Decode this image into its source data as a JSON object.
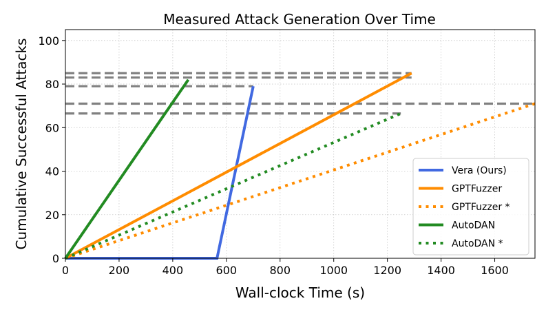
{
  "chart_data": {
    "type": "line",
    "title": "Measured Attack Generation Over Time",
    "xlabel": "Wall-clock Time (s)",
    "ylabel": "Cumulative Successful Attacks",
    "xlim": [
      0,
      1750
    ],
    "ylim": [
      0,
      105
    ],
    "xticks": [
      0,
      200,
      400,
      600,
      800,
      1000,
      1200,
      1400,
      1600
    ],
    "yticks": [
      0,
      20,
      40,
      60,
      80,
      100
    ],
    "grid": true,
    "legend_position": "lower-right",
    "series": [
      {
        "name": "Vera (Ours)",
        "color": "#4169e1",
        "style": "solid",
        "points": [
          [
            0,
            0
          ],
          [
            565,
            0
          ],
          [
            700,
            79
          ]
        ]
      },
      {
        "name": "GPTFuzzer",
        "color": "#ff8c00",
        "style": "solid",
        "points": [
          [
            0,
            0
          ],
          [
            1290,
            85
          ]
        ]
      },
      {
        "name": "GPTFuzzer *",
        "color": "#ff8c00",
        "style": "dotted",
        "points": [
          [
            0,
            0
          ],
          [
            1750,
            71
          ]
        ]
      },
      {
        "name": "AutoDAN",
        "color": "#228b22",
        "style": "solid",
        "points": [
          [
            0,
            0
          ],
          [
            458,
            82
          ]
        ]
      },
      {
        "name": "AutoDAN *",
        "color": "#228b22",
        "style": "dotted",
        "points": [
          [
            0,
            0
          ],
          [
            1250,
            66.5
          ]
        ]
      }
    ],
    "reference_lines": {
      "color": "#808080",
      "style": "dashed",
      "lines": [
        {
          "y": 85,
          "x_end": 1290
        },
        {
          "y": 83,
          "x_end": 1290
        },
        {
          "y": 79,
          "x_end": 700
        },
        {
          "y": 71,
          "x_end": 1750
        },
        {
          "y": 66.5,
          "x_end": 1250
        }
      ]
    }
  }
}
